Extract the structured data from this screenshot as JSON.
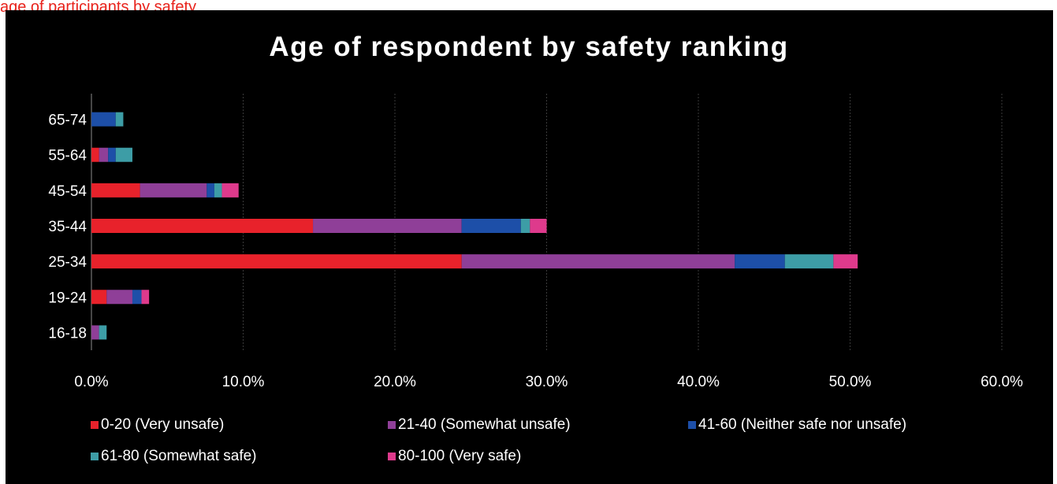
{
  "top_caption": "age of participants by safety",
  "chart_data": {
    "type": "bar",
    "orientation": "horizontal",
    "stacked": true,
    "title": "Age of respondent by safety ranking",
    "categories": [
      "16-18",
      "19-24",
      "25-34",
      "35-44",
      "45-54",
      "55-64",
      "65-74"
    ],
    "series": [
      {
        "name": "0-20 (Very unsafe)",
        "color": "#e8222b",
        "values": [
          0.0,
          1.0,
          24.4,
          14.6,
          3.2,
          0.5,
          0.0
        ]
      },
      {
        "name": "21-40 (Somewhat unsafe)",
        "color": "#8f3f98",
        "values": [
          0.5,
          1.7,
          18.0,
          9.8,
          4.4,
          0.6,
          0.0
        ]
      },
      {
        "name": "41-60 (Neither safe nor unsafe)",
        "color": "#1d4fa8",
        "values": [
          0.0,
          0.6,
          3.3,
          3.9,
          0.5,
          0.5,
          1.6
        ]
      },
      {
        "name": "61-80 (Somewhat safe)",
        "color": "#3d9da6",
        "values": [
          0.5,
          0.0,
          3.2,
          0.6,
          0.5,
          1.1,
          0.5
        ]
      },
      {
        "name": "80-100 (Very safe)",
        "color": "#de3a8c",
        "values": [
          0.0,
          0.5,
          1.6,
          1.1,
          1.1,
          0.0,
          0.0
        ]
      }
    ],
    "xlim": [
      0,
      60
    ],
    "xticks": [
      "0.0%",
      "10.0%",
      "20.0%",
      "30.0%",
      "40.0%",
      "50.0%",
      "60.0%"
    ],
    "xtick_values": [
      0,
      10,
      20,
      30,
      40,
      50,
      60
    ],
    "grid": true,
    "legend_position": "bottom"
  }
}
